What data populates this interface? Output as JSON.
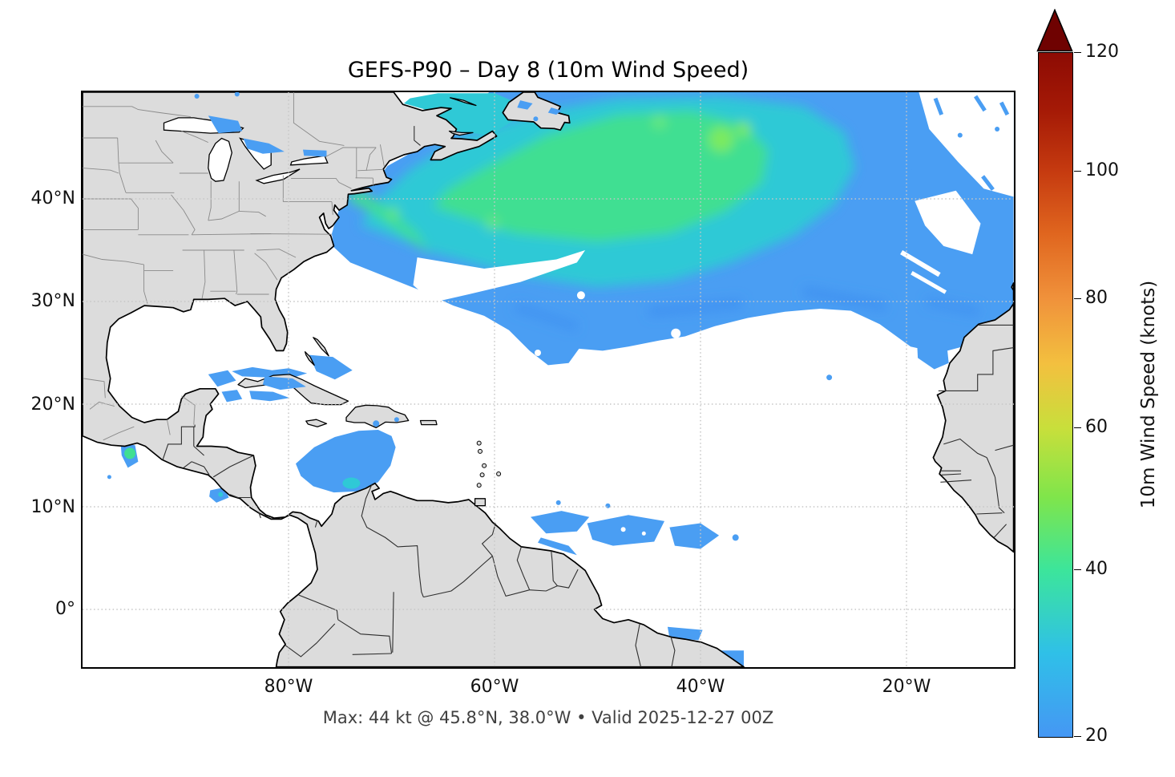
{
  "title": "GEFS-P90 – Day 8 (10m Wind Speed)",
  "subtitle": "Max: 44 kt @ 45.8°N, 38.0°W • Valid 2025-12-27 00Z",
  "axes": {
    "lat_ticks": [
      "40°N",
      "30°N",
      "20°N",
      "10°N",
      "0°"
    ],
    "lon_ticks": [
      "80°W",
      "60°W",
      "40°W",
      "20°W"
    ]
  },
  "colorbar": {
    "label": "10m Wind Speed (knots)",
    "ticks": [
      "120",
      "100",
      "80",
      "60",
      "40",
      "20"
    ],
    "extend": "max",
    "arrow_color": "#6f0201",
    "gradient": [
      [
        0,
        "#8d0b04"
      ],
      [
        0.085,
        "#a51a06"
      ],
      [
        0.174,
        "#c63b10"
      ],
      [
        0.265,
        "#e0661f"
      ],
      [
        0.36,
        "#f0923b"
      ],
      [
        0.455,
        "#f3c03f"
      ],
      [
        0.549,
        "#c8df3b"
      ],
      [
        0.65,
        "#7fe54b"
      ],
      [
        0.756,
        "#3ce59b"
      ],
      [
        0.878,
        "#2fc0e8"
      ],
      [
        1,
        "#4597f4"
      ]
    ]
  },
  "colors": {
    "land": "#dcdcdc",
    "ocean": "#ffffff",
    "coastline": "#000000",
    "country_border": "#2f2f2f",
    "state_border": "#8a8a8a",
    "gridline": "#c6c6c6",
    "wind_20kt": "#4a9ef3",
    "wind_30kt": "#2fc9d6",
    "wind_35kt": "#40df92",
    "wind_40kt": "#66e77f",
    "wind_44kt": "#7cea5e"
  },
  "chart_data": {
    "type": "heatmap",
    "title": "GEFS-P90 – Day 8 (10m Wind Speed)",
    "variable": "10m Wind Speed",
    "units": "knots",
    "model": "GEFS ensemble 90th percentile (P90)",
    "lead_time": "Day 8",
    "valid_time": "2025-12-27 00Z",
    "max": {
      "value_kt": 44,
      "lat": "45.8°N",
      "lon": "38.0°W"
    },
    "colorbar": {
      "min": 20,
      "max": 120,
      "ticks": [
        120,
        100,
        80,
        60,
        40,
        20
      ],
      "extend": "max",
      "label": "10m Wind Speed (knots)"
    },
    "map_extent": {
      "lon_min": "100°W",
      "lon_max": "10°W",
      "lat_min": "5.6°S",
      "lat_max": "50.4°N"
    },
    "gridlines": {
      "lat": [
        "0°",
        "10°N",
        "20°N",
        "30°N",
        "40°N"
      ],
      "lon": [
        "80°W",
        "60°W",
        "40°W",
        "20°W"
      ]
    },
    "masked_below_kt": 20,
    "regions": [
      {
        "region": "Western/central North Atlantic swath from US East Coast (33–45°N) northeastward across top of map",
        "approx_kt": "22–44, greens 35–44 centered near 45.8°N 38.0°W"
      },
      {
        "region": "Gulf of St. Lawrence / around Nova Scotia and Newfoundland",
        "approx_kt": "22–32"
      },
      {
        "region": "NE Atlantic off Morocco / Canary region (25–45°N east of 22°W)",
        "approx_kt": "20–33"
      },
      {
        "region": "Central Caribbean south of Hispaniola to Colombian coast",
        "approx_kt": "20–30, small teal core ~30"
      },
      {
        "region": "Waters around Cuba, Florida Straits, Bahamas, SE Gulf of Mexico",
        "approx_kt": "20–25"
      },
      {
        "region": "ITCZ patches 4–10°N between 57°W and 36°W",
        "approx_kt": "20–25"
      },
      {
        "region": "Gulf of Tehuantepec gap-wind jet (Pacific)",
        "approx_kt": "20–35"
      },
      {
        "region": "Papagayo jet off Nicaragua/Costa Rica (Pacific)",
        "approx_kt": "20–26"
      },
      {
        "region": "Off Western Sahara / Senegal coast ~21–27°N",
        "approx_kt": "20–24"
      },
      {
        "region": "NE Brazil coast near 2–5.5°S and Guiana coast",
        "approx_kt": "20–24"
      },
      {
        "region": "Great Lakes (Superior/Huron/Ontario) and Newfoundland interior specks",
        "approx_kt": "20–25"
      },
      {
        "region": "All white areas",
        "approx_kt": "below 20 (masked)"
      }
    ]
  }
}
